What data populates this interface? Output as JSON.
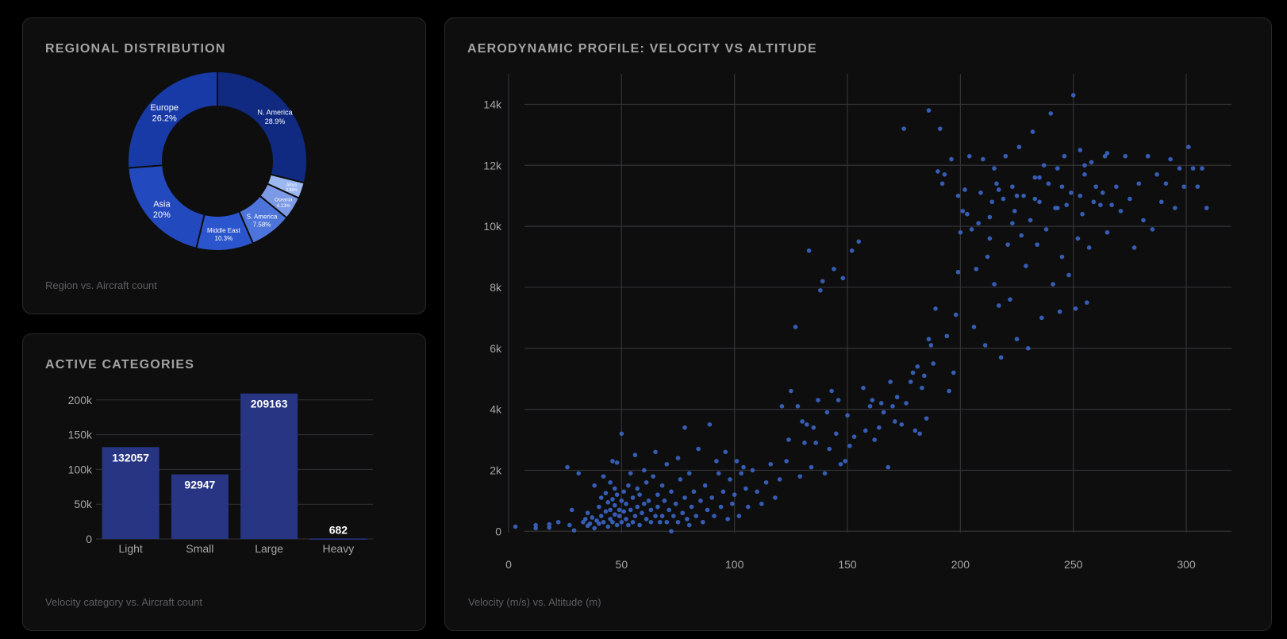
{
  "colors": {
    "background": "#000000",
    "card": "#0e0e0f",
    "bar": "#283583",
    "point": "#3a66c7",
    "grid": "#333336",
    "title": "#a3a3a3",
    "caption": "#5e5e62"
  },
  "region_card": {
    "title": "REGIONAL DISTRIBUTION",
    "caption": "Region vs. Aircraft count"
  },
  "category_card": {
    "title": "ACTIVE CATEGORIES",
    "caption": "Velocity category vs. Aircraft count"
  },
  "aero_card": {
    "title": "AERODYNAMIC PROFILE: VELOCITY VS ALTITUDE",
    "caption": "Velocity (m/s) vs. Altitude (m)"
  },
  "chart_data": [
    {
      "type": "pie",
      "variant": "donut",
      "slices": [
        {
          "label": "N. America",
          "pct_label": "28.9%",
          "value": 28.9,
          "color": "#0f2a80"
        },
        {
          "label": "Africa",
          "pct_label": "2.88%",
          "value": 2.88,
          "color": "#9db8f0"
        },
        {
          "label": "Oceania",
          "pct_label": "4.13%",
          "value": 4.13,
          "color": "#7d9ae6"
        },
        {
          "label": "S. America",
          "pct_label": "7.58%",
          "value": 7.58,
          "color": "#4d74da"
        },
        {
          "label": "Middle East",
          "pct_label": "10.3%",
          "value": 10.3,
          "color": "#2a55cc"
        },
        {
          "label": "Asia",
          "pct_label": "20%",
          "value": 20.0,
          "color": "#2349bf"
        },
        {
          "label": "Europe",
          "pct_label": "26.2%",
          "value": 26.21,
          "color": "#183aa6"
        }
      ]
    },
    {
      "type": "bar",
      "categories": [
        "Light",
        "Small",
        "Large",
        "Heavy"
      ],
      "values": [
        132057,
        92947,
        209163,
        682
      ],
      "value_labels": [
        "132057",
        "92947",
        "209163",
        "682"
      ],
      "ylim": [
        0,
        210000
      ],
      "yticks": [
        0,
        50000,
        100000,
        150000,
        200000
      ],
      "ytick_labels": [
        "0",
        "50k",
        "100k",
        "150k",
        "200k"
      ],
      "grid": true
    },
    {
      "type": "scatter",
      "xlim": [
        0,
        320
      ],
      "ylim": [
        -800,
        15000
      ],
      "xticks": [
        0,
        50,
        100,
        150,
        200,
        250,
        300
      ],
      "xtick_labels": [
        "0",
        "50",
        "100",
        "150",
        "200",
        "250",
        "300"
      ],
      "yticks": [
        0,
        2000,
        4000,
        6000,
        8000,
        10000,
        12000,
        14000
      ],
      "ytick_labels": [
        "0",
        "2k",
        "4k",
        "6k",
        "8k",
        "10k",
        "12k",
        "14k"
      ],
      "grid": true,
      "points": [
        [
          3,
          150
        ],
        [
          12,
          100
        ],
        [
          12,
          200
        ],
        [
          18,
          120
        ],
        [
          18,
          230
        ],
        [
          22,
          300
        ],
        [
          26,
          2100
        ],
        [
          27,
          200
        ],
        [
          28,
          700
        ],
        [
          29,
          30
        ],
        [
          31,
          1900
        ],
        [
          33,
          300
        ],
        [
          34,
          400
        ],
        [
          35,
          600
        ],
        [
          35,
          180
        ],
        [
          36,
          250
        ],
        [
          37,
          450
        ],
        [
          38,
          100
        ],
        [
          38,
          1500
        ],
        [
          39,
          350
        ],
        [
          40,
          250
        ],
        [
          40,
          800
        ],
        [
          41,
          1100
        ],
        [
          41,
          500
        ],
        [
          42,
          300
        ],
        [
          42,
          1800
        ],
        [
          43,
          650
        ],
        [
          43,
          1250
        ],
        [
          44,
          150
        ],
        [
          44,
          950
        ],
        [
          45,
          400
        ],
        [
          45,
          700
        ],
        [
          45,
          1600
        ],
        [
          46,
          2300
        ],
        [
          46,
          1050
        ],
        [
          46,
          300
        ],
        [
          47,
          850
        ],
        [
          47,
          550
        ],
        [
          47,
          1400
        ],
        [
          48,
          1200
        ],
        [
          48,
          2250
        ],
        [
          48,
          200
        ],
        [
          49,
          700
        ],
        [
          49,
          500
        ],
        [
          50,
          1000
        ],
        [
          50,
          3200
        ],
        [
          50,
          300
        ],
        [
          51,
          1300
        ],
        [
          51,
          650
        ],
        [
          52,
          900
        ],
        [
          52,
          400
        ],
        [
          53,
          1500
        ],
        [
          53,
          200
        ],
        [
          54,
          700
        ],
        [
          54,
          1900
        ],
        [
          55,
          1100
        ],
        [
          55,
          300
        ],
        [
          56,
          2500
        ],
        [
          56,
          500
        ],
        [
          57,
          800
        ],
        [
          57,
          1400
        ],
        [
          58,
          200
        ],
        [
          58,
          1200
        ],
        [
          59,
          600
        ],
        [
          60,
          2000
        ],
        [
          60,
          900
        ],
        [
          61,
          400
        ],
        [
          61,
          1600
        ],
        [
          62,
          1000
        ],
        [
          63,
          700
        ],
        [
          63,
          300
        ],
        [
          64,
          1800
        ],
        [
          65,
          500
        ],
        [
          65,
          2600
        ],
        [
          66,
          1200
        ],
        [
          66,
          800
        ],
        [
          67,
          300
        ],
        [
          68,
          1500
        ],
        [
          68,
          500
        ],
        [
          69,
          1000
        ],
        [
          70,
          2200
        ],
        [
          70,
          300
        ],
        [
          71,
          700
        ],
        [
          72,
          1300
        ],
        [
          72,
          0
        ],
        [
          73,
          500
        ],
        [
          74,
          900
        ],
        [
          75,
          2400
        ],
        [
          75,
          300
        ],
        [
          76,
          1700
        ],
        [
          77,
          600
        ],
        [
          78,
          3400
        ],
        [
          78,
          1100
        ],
        [
          79,
          400
        ],
        [
          80,
          200
        ],
        [
          80,
          1900
        ],
        [
          81,
          800
        ],
        [
          82,
          1300
        ],
        [
          83,
          500
        ],
        [
          84,
          2700
        ],
        [
          85,
          1000
        ],
        [
          86,
          300
        ],
        [
          87,
          1500
        ],
        [
          88,
          700
        ],
        [
          89,
          3500
        ],
        [
          90,
          1100
        ],
        [
          91,
          500
        ],
        [
          92,
          2300
        ],
        [
          93,
          1900
        ],
        [
          94,
          800
        ],
        [
          95,
          1300
        ],
        [
          96,
          2600
        ],
        [
          97,
          400
        ],
        [
          98,
          1700
        ],
        [
          99,
          900
        ],
        [
          100,
          1200
        ],
        [
          101,
          2300
        ],
        [
          102,
          500
        ],
        [
          103,
          1900
        ],
        [
          104,
          2100
        ],
        [
          105,
          1400
        ],
        [
          106,
          800
        ],
        [
          108,
          2000
        ],
        [
          110,
          1300
        ],
        [
          112,
          900
        ],
        [
          114,
          1600
        ],
        [
          116,
          2200
        ],
        [
          118,
          1100
        ],
        [
          120,
          1700
        ],
        [
          121,
          4100
        ],
        [
          123,
          2300
        ],
        [
          124,
          3000
        ],
        [
          125,
          4600
        ],
        [
          127,
          6700
        ],
        [
          128,
          4100
        ],
        [
          129,
          1800
        ],
        [
          130,
          3600
        ],
        [
          131,
          2900
        ],
        [
          132,
          3500
        ],
        [
          133,
          9200
        ],
        [
          134,
          2100
        ],
        [
          135,
          3400
        ],
        [
          136,
          2900
        ],
        [
          137,
          4300
        ],
        [
          138,
          7900
        ],
        [
          139,
          8200
        ],
        [
          140,
          1900
        ],
        [
          141,
          3900
        ],
        [
          142,
          2700
        ],
        [
          143,
          4600
        ],
        [
          144,
          8600
        ],
        [
          145,
          3200
        ],
        [
          146,
          4300
        ],
        [
          147,
          2200
        ],
        [
          148,
          8300
        ],
        [
          149,
          2300
        ],
        [
          150,
          3800
        ],
        [
          151,
          2800
        ],
        [
          152,
          9200
        ],
        [
          153,
          3100
        ],
        [
          155,
          9500
        ],
        [
          157,
          4700
        ],
        [
          158,
          3300
        ],
        [
          160,
          4100
        ],
        [
          161,
          4300
        ],
        [
          162,
          3000
        ],
        [
          164,
          3400
        ],
        [
          165,
          4200
        ],
        [
          166,
          3900
        ],
        [
          168,
          2100
        ],
        [
          169,
          4900
        ],
        [
          170,
          4100
        ],
        [
          171,
          3600
        ],
        [
          172,
          4400
        ],
        [
          174,
          3500
        ],
        [
          175,
          13200
        ],
        [
          176,
          4200
        ],
        [
          178,
          4900
        ],
        [
          179,
          5200
        ],
        [
          180,
          3300
        ],
        [
          181,
          5400
        ],
        [
          182,
          3200
        ],
        [
          183,
          4700
        ],
        [
          184,
          5100
        ],
        [
          185,
          3700
        ],
        [
          186,
          13800
        ],
        [
          186,
          6300
        ],
        [
          187,
          6100
        ],
        [
          188,
          5500
        ],
        [
          189,
          7300
        ],
        [
          190,
          11800
        ],
        [
          191,
          13200
        ],
        [
          192,
          11400
        ],
        [
          193,
          11700
        ],
        [
          194,
          6400
        ],
        [
          195,
          4600
        ],
        [
          196,
          12200
        ],
        [
          197,
          5200
        ],
        [
          198,
          7100
        ],
        [
          199,
          8500
        ],
        [
          199,
          11000
        ],
        [
          200,
          9800
        ],
        [
          201,
          10500
        ],
        [
          202,
          11200
        ],
        [
          203,
          10400
        ],
        [
          204,
          12300
        ],
        [
          205,
          9900
        ],
        [
          206,
          6700
        ],
        [
          207,
          8600
        ],
        [
          208,
          10100
        ],
        [
          209,
          11100
        ],
        [
          210,
          12200
        ],
        [
          211,
          6100
        ],
        [
          212,
          9000
        ],
        [
          213,
          10300
        ],
        [
          214,
          10800
        ],
        [
          215,
          8100
        ],
        [
          216,
          11400
        ],
        [
          217,
          7400
        ],
        [
          218,
          5700
        ],
        [
          219,
          10900
        ],
        [
          220,
          12300
        ],
        [
          221,
          9400
        ],
        [
          222,
          7600
        ],
        [
          223,
          11300
        ],
        [
          224,
          10500
        ],
        [
          225,
          6300
        ],
        [
          226,
          12600
        ],
        [
          227,
          9700
        ],
        [
          228,
          11000
        ],
        [
          229,
          8700
        ],
        [
          230,
          6000
        ],
        [
          231,
          10200
        ],
        [
          232,
          13100
        ],
        [
          233,
          11600
        ],
        [
          234,
          9400
        ],
        [
          235,
          10800
        ],
        [
          236,
          7000
        ],
        [
          237,
          12000
        ],
        [
          238,
          9900
        ],
        [
          239,
          11400
        ],
        [
          240,
          13700
        ],
        [
          241,
          8100
        ],
        [
          242,
          10600
        ],
        [
          243,
          11900
        ],
        [
          244,
          7200
        ],
        [
          245,
          9000
        ],
        [
          246,
          12300
        ],
        [
          247,
          10700
        ],
        [
          248,
          8400
        ],
        [
          249,
          11100
        ],
        [
          250,
          14300
        ],
        [
          251,
          7300
        ],
        [
          252,
          9600
        ],
        [
          253,
          12500
        ],
        [
          254,
          10400
        ],
        [
          255,
          11700
        ],
        [
          256,
          7500
        ],
        [
          257,
          9300
        ],
        [
          258,
          12100
        ],
        [
          259,
          10800
        ],
        [
          260,
          11300
        ],
        [
          262,
          10700
        ],
        [
          264,
          12300
        ],
        [
          265,
          9800
        ],
        [
          267,
          10700
        ],
        [
          269,
          11300
        ],
        [
          271,
          10500
        ],
        [
          273,
          12300
        ],
        [
          275,
          10900
        ],
        [
          277,
          9300
        ],
        [
          279,
          11400
        ],
        [
          281,
          10200
        ],
        [
          283,
          12300
        ],
        [
          285,
          9900
        ],
        [
          287,
          11700
        ],
        [
          289,
          10800
        ],
        [
          291,
          11400
        ],
        [
          293,
          12200
        ],
        [
          295,
          10600
        ],
        [
          297,
          11900
        ],
        [
          299,
          11300
        ],
        [
          301,
          12600
        ],
        [
          303,
          11900
        ],
        [
          305,
          11300
        ],
        [
          307,
          11900
        ],
        [
          309,
          10600
        ],
        [
          215,
          11900
        ],
        [
          225,
          11000
        ],
        [
          235,
          11600
        ],
        [
          245,
          11300
        ],
        [
          255,
          12000
        ],
        [
          265,
          12400
        ],
        [
          213,
          9600
        ],
        [
          223,
          10100
        ],
        [
          233,
          10900
        ],
        [
          243,
          10600
        ],
        [
          253,
          11000
        ],
        [
          263,
          11100
        ],
        [
          217,
          11200
        ]
      ]
    }
  ]
}
